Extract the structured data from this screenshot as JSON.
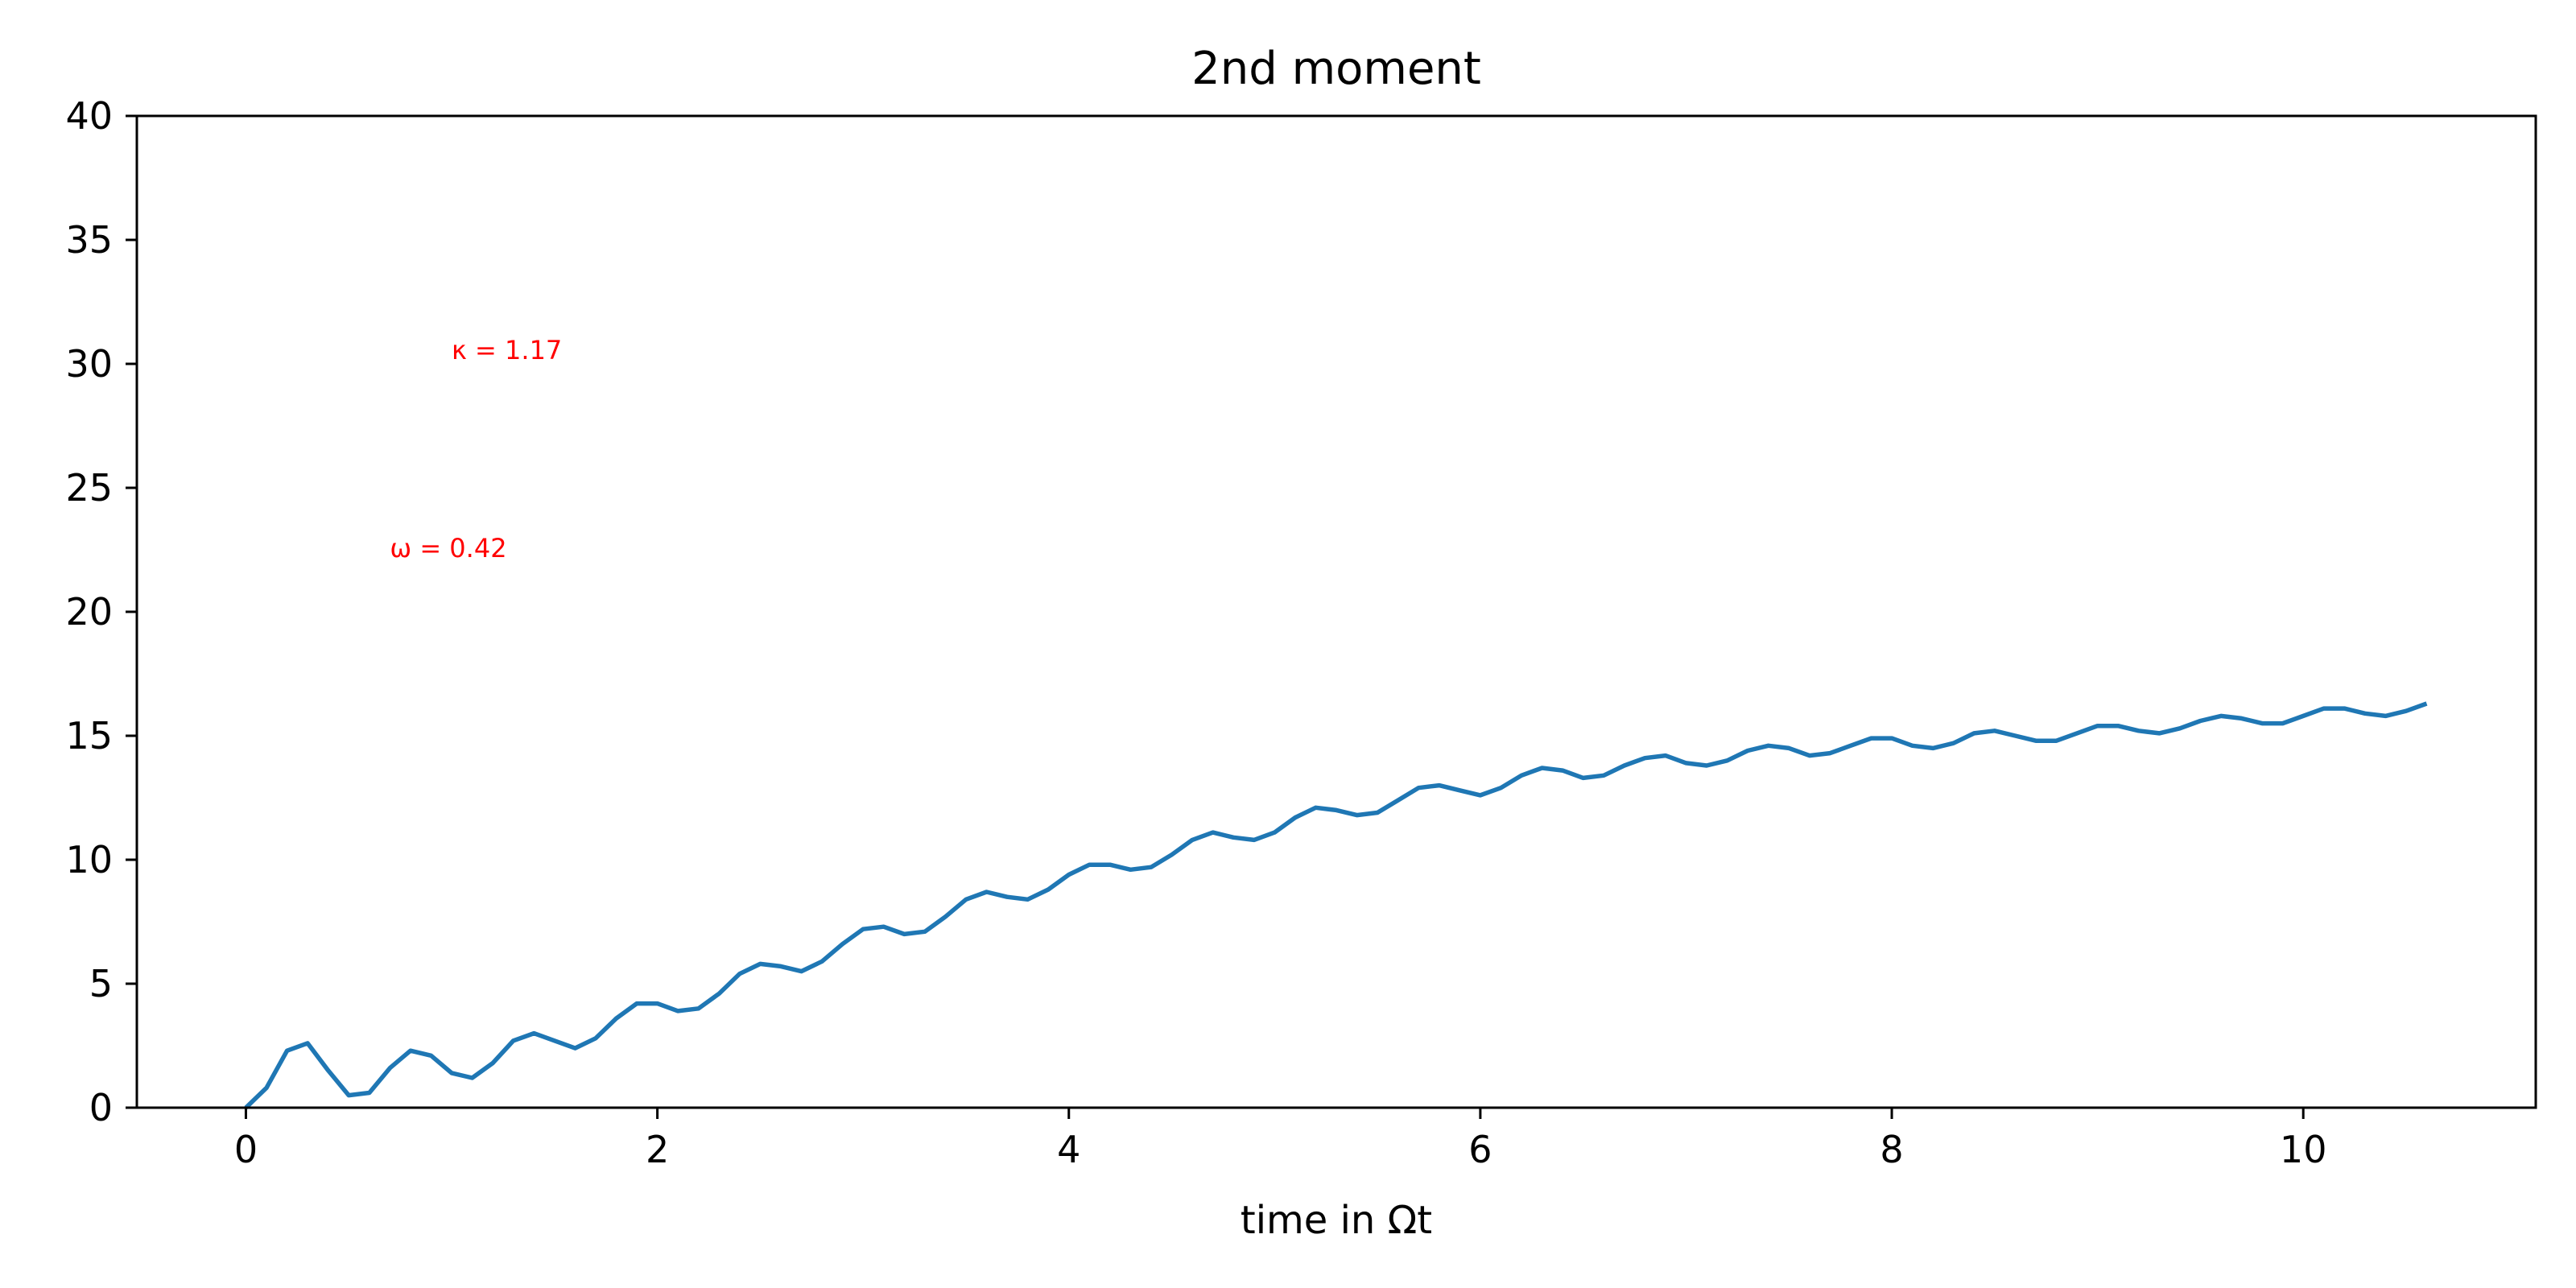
{
  "chart_data": {
    "type": "line",
    "title": "2nd moment",
    "xlabel": "time in Ωt",
    "ylabel": "",
    "xlim": [
      -0.53,
      11.13
    ],
    "ylim": [
      0,
      40
    ],
    "xticks": [
      0,
      2,
      4,
      6,
      8,
      10
    ],
    "yticks": [
      0,
      5,
      10,
      15,
      20,
      25,
      30,
      35,
      40
    ],
    "grid": false,
    "legend": "none",
    "line_color": "#1f77b4",
    "annotation_color": "#ff0000",
    "annotations": [
      {
        "text": "κ = 1.17",
        "x": 1.0,
        "y": 30.2
      },
      {
        "text": "ω = 0.42",
        "x": 0.7,
        "y": 22.2
      }
    ],
    "series": [
      {
        "x": [
          0,
          0.1,
          0.2,
          0.3,
          0.4,
          0.5,
          0.6,
          0.7,
          0.8,
          0.9,
          1.0,
          1.1,
          1.2,
          1.3,
          1.4,
          1.5,
          1.6,
          1.7,
          1.8,
          1.9,
          2.0,
          2.1,
          2.2,
          2.3,
          2.4,
          2.5,
          2.6,
          2.7,
          2.8,
          2.9,
          3.0,
          3.1,
          3.2,
          3.3,
          3.4,
          3.5,
          3.6,
          3.7,
          3.8,
          3.9,
          4.0,
          4.1,
          4.2,
          4.3,
          4.4,
          4.5,
          4.6,
          4.7,
          4.8,
          4.9,
          5.0,
          5.1,
          5.2,
          5.3,
          5.4,
          5.5,
          5.6,
          5.7,
          5.8,
          5.9,
          6.0,
          6.1,
          6.2,
          6.3,
          6.4,
          6.5,
          6.6,
          6.7,
          6.8,
          6.9,
          7.0,
          7.1,
          7.2,
          7.3,
          7.4,
          7.5,
          7.6,
          7.7,
          7.8,
          7.9,
          8.0,
          8.1,
          8.2,
          8.3,
          8.4,
          8.5,
          8.6,
          8.7,
          8.8,
          8.9,
          9.0,
          9.1,
          9.2,
          9.3,
          9.4,
          9.5,
          9.6,
          9.7,
          9.8,
          9.9,
          10.0,
          10.1,
          10.2,
          10.3,
          10.4,
          10.5,
          10.6
        ],
        "y": [
          0,
          0.8,
          2.3,
          2.6,
          1.5,
          0.5,
          0.6,
          1.6,
          2.3,
          2.1,
          1.4,
          1.2,
          1.8,
          2.7,
          3.0,
          2.7,
          2.4,
          2.8,
          3.6,
          4.2,
          4.2,
          3.9,
          4.0,
          4.6,
          5.4,
          5.8,
          5.7,
          5.5,
          5.9,
          6.6,
          7.2,
          7.3,
          7.0,
          7.1,
          7.7,
          8.4,
          8.7,
          8.5,
          8.4,
          8.8,
          9.4,
          9.8,
          9.8,
          9.6,
          9.7,
          10.2,
          10.8,
          11.1,
          10.9,
          10.8,
          11.1,
          11.7,
          12.1,
          12.0,
          11.8,
          11.9,
          12.4,
          12.9,
          13.0,
          12.8,
          12.6,
          12.9,
          13.4,
          13.7,
          13.6,
          13.3,
          13.4,
          13.8,
          14.1,
          14.2,
          13.9,
          13.8,
          14.0,
          14.4,
          14.6,
          14.5,
          14.2,
          14.3,
          14.6,
          14.9,
          14.9,
          14.6,
          14.5,
          14.7,
          15.1,
          15.2,
          15.0,
          14.8,
          14.8,
          15.1,
          15.4,
          15.4,
          15.2,
          15.1,
          15.3,
          15.6,
          15.8,
          15.7,
          15.5,
          15.5,
          15.8,
          16.1,
          16.1,
          15.9,
          15.8,
          16.0,
          16.3
        ]
      }
    ]
  }
}
